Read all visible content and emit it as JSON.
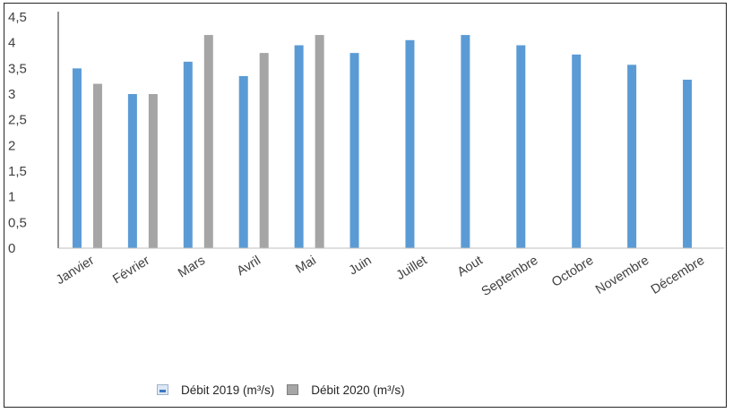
{
  "chart_data": {
    "type": "bar",
    "title": "",
    "xlabel": "",
    "ylabel": "",
    "ylim": [
      0,
      4.5
    ],
    "yticks": [
      "0",
      "0,5",
      "1",
      "1,5",
      "2",
      "2,5",
      "3",
      "3,5",
      "4",
      "4,5"
    ],
    "categories": [
      "Janvier",
      "Février",
      "Mars",
      "Avril",
      "Mai",
      "Juin",
      "Juillet",
      "Aout",
      "Septembre",
      "Octobre",
      "Novembre",
      "Décembre"
    ],
    "series": [
      {
        "name": "Débit 2019 (m³/s)",
        "color": "#5b9bd5",
        "values": [
          3.5,
          3.0,
          3.63,
          3.35,
          3.95,
          3.8,
          4.05,
          4.15,
          3.95,
          3.77,
          3.57,
          3.28
        ]
      },
      {
        "name": "Débit 2020 (m³/s)",
        "color": "#a5a5a5",
        "values": [
          3.2,
          3.0,
          4.15,
          3.8,
          4.15,
          null,
          null,
          null,
          null,
          null,
          null,
          null
        ]
      }
    ],
    "grid": false,
    "legend_position": "bottom"
  }
}
